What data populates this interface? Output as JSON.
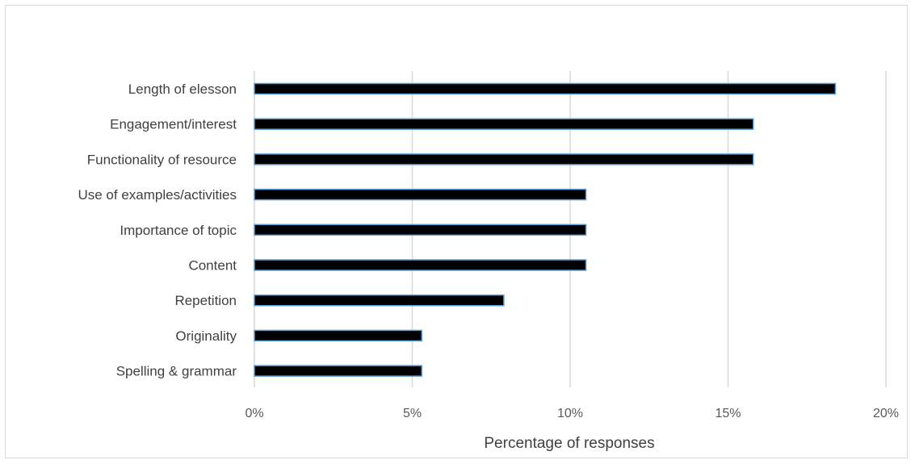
{
  "chart_data": {
    "type": "bar",
    "orientation": "horizontal",
    "title": "",
    "xlabel": "Percentage of responses",
    "ylabel": "",
    "categories": [
      "Length of elesson",
      "Engagement/interest",
      "Functionality of resource",
      "Use of examples/activities",
      "Importance of topic",
      "Content",
      "Repetition",
      "Originality",
      "Spelling & grammar"
    ],
    "values": [
      18.4,
      15.8,
      15.8,
      10.5,
      10.5,
      10.5,
      7.9,
      5.3,
      5.3
    ],
    "xlim": [
      0,
      20
    ],
    "xticks": [
      0,
      5,
      10,
      15,
      20
    ],
    "xtick_labels": [
      "0%",
      "5%",
      "10%",
      "15%",
      "20%"
    ],
    "grid": "vertical",
    "legend": "none",
    "colors": {
      "bar_fill": "#000000",
      "bar_outline": "#5b9bd5",
      "grid": "#d9d9d9"
    }
  }
}
